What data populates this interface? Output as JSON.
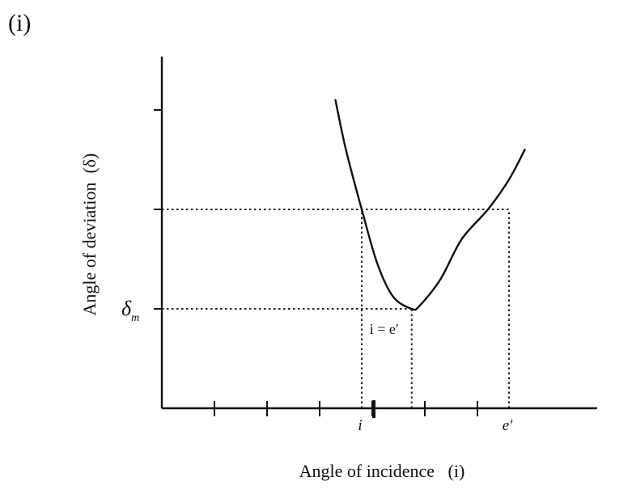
{
  "figure_label": "(i)",
  "chart_data": {
    "type": "line",
    "title": "",
    "xlabel": "Angle of incidence   (i)",
    "ylabel": "Angle of deviation  (δ)",
    "x_tick_labels": [
      {
        "label": "i",
        "x": 3.8
      },
      {
        "label": "e′",
        "x": 6.6
      }
    ],
    "y_tick_labels": [
      {
        "label": "δm",
        "y": 1.0
      }
    ],
    "x_ticks": [
      1,
      2,
      3,
      4,
      5,
      6
    ],
    "y_ticks": [
      1,
      2,
      3
    ],
    "xlim": [
      0,
      6.6
    ],
    "ylim": [
      0,
      3.1
    ],
    "series": [
      {
        "x": [
          3.3,
          3.5,
          3.8,
          4.1,
          4.4,
          4.75,
          4.9,
          5.3,
          5.7,
          6.2,
          6.6,
          6.9
        ],
        "y": [
          3.1,
          2.6,
          2.0,
          1.45,
          1.12,
          1.0,
          1.03,
          1.3,
          1.7,
          2.0,
          2.3,
          2.6
        ]
      }
    ],
    "reference_lines": [
      {
        "type": "dotted",
        "from": {
          "x": 0,
          "y": 2.0
        },
        "to": {
          "x": 6.6,
          "y": 2.0
        }
      },
      {
        "type": "dotted",
        "from": {
          "x": 0,
          "y": 1.0
        },
        "to": {
          "x": 4.75,
          "y": 1.0
        }
      },
      {
        "type": "dotted",
        "from": {
          "x": 3.8,
          "y": 0
        },
        "to": {
          "x": 3.8,
          "y": 2.0
        }
      },
      {
        "type": "dotted",
        "from": {
          "x": 6.6,
          "y": 0
        },
        "to": {
          "x": 6.6,
          "y": 2.0
        }
      },
      {
        "type": "dotted",
        "from": {
          "x": 4.75,
          "y": 0
        },
        "to": {
          "x": 4.75,
          "y": 1.0
        }
      }
    ],
    "annotations": [
      {
        "text": "i = e′",
        "x": 4.75,
        "y": 1.0
      }
    ],
    "grid": false,
    "legend": "none"
  }
}
